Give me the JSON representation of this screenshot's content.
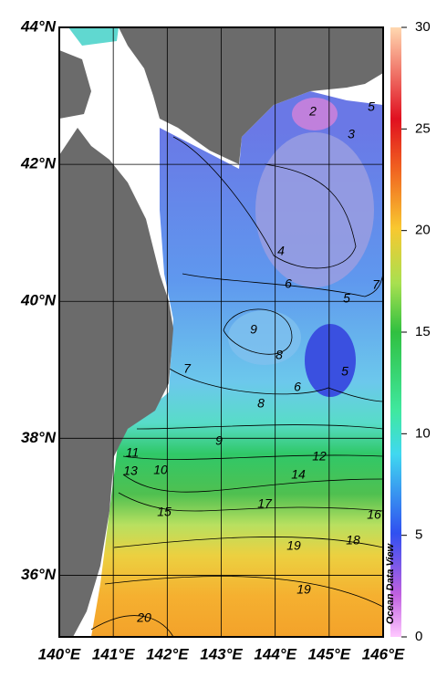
{
  "map": {
    "lat_ticks": [
      {
        "value": 44,
        "label": "44°N"
      },
      {
        "value": 42,
        "label": "42°N"
      },
      {
        "value": 40,
        "label": "40°N"
      },
      {
        "value": 38,
        "label": "38°N"
      },
      {
        "value": 36,
        "label": "36°N"
      }
    ],
    "lon_ticks": [
      {
        "value": 140,
        "label": "140°E"
      },
      {
        "value": 141,
        "label": "141°E"
      },
      {
        "value": 142,
        "label": "142°E"
      },
      {
        "value": 143,
        "label": "143°E"
      },
      {
        "value": 144,
        "label": "144°E"
      },
      {
        "value": 145,
        "label": "145°E"
      },
      {
        "value": 146,
        "label": "146°E"
      }
    ],
    "lonlim": [
      140,
      146
    ],
    "latlim": [
      35.1,
      44
    ],
    "colorbar": {
      "lim": [
        0,
        30
      ],
      "ticks": [
        0,
        5,
        10,
        15,
        20,
        25,
        30
      ]
    },
    "contour_labels": [
      2,
      3,
      5,
      4,
      6,
      5,
      7,
      9,
      8,
      5,
      6,
      7,
      8,
      9,
      12,
      10,
      11,
      13,
      14,
      15,
      17,
      16,
      18,
      19,
      19,
      20
    ],
    "watermark": "Ocean Data View"
  }
}
